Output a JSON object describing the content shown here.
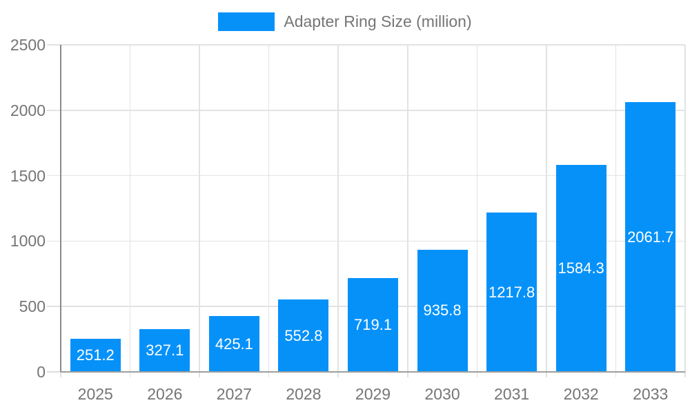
{
  "legend": {
    "label": "Adapter Ring Size (million)"
  },
  "chart_data": {
    "type": "bar",
    "title": "",
    "series_name": "Adapter Ring Size (million)",
    "categories": [
      "2025",
      "2026",
      "2027",
      "2028",
      "2029",
      "2030",
      "2031",
      "2032",
      "2033"
    ],
    "values": [
      251.2,
      327.1,
      425.1,
      552.8,
      719.1,
      935.8,
      1217.8,
      1584.3,
      2061.7
    ],
    "value_labels": [
      "251.2",
      "327.1",
      "425.1",
      "552.8",
      "719.1",
      "935.8",
      "1217.8",
      "1584.3",
      "2061.7"
    ],
    "xlabel": "",
    "ylabel": "",
    "ylim": [
      0,
      2500
    ],
    "yticks": [
      0,
      500,
      1000,
      1500,
      2000,
      2500
    ],
    "grid": true,
    "legend_position": "top",
    "bar_color": "#0691f9",
    "colors": {
      "bar": "#0691f9",
      "axis_text": "#757575",
      "gridline": "#e2e2e2",
      "axis_line": "#8a8a8a",
      "baseline": "#9e9e9e",
      "value_label": "#ffffff",
      "background": "#ffffff"
    }
  }
}
